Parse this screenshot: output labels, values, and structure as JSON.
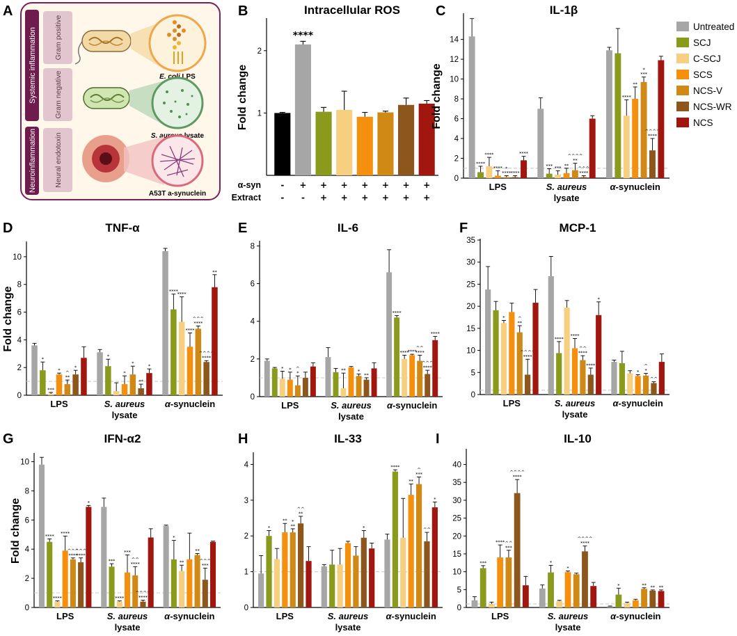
{
  "legend": {
    "items": [
      "Untreated",
      "SCJ",
      "C-SCJ",
      "SCS",
      "NCS-V",
      "NCS-WR",
      "NCS"
    ],
    "colors": [
      "#a6a6a6",
      "#8a9a1c",
      "#f7cf80",
      "#f5900e",
      "#cf8914",
      "#8c561c",
      "#a21610"
    ]
  },
  "panel_a": {
    "label": "A",
    "side_labels": [
      "Systemic inflammation",
      "Neuroinflammation"
    ],
    "box_labels": [
      "Gram positive",
      "Gram negative",
      "Neural endotoxin"
    ],
    "captions": [
      {
        "italic": "E. coli",
        "plain": " LPS"
      },
      {
        "italic": "S. aureus",
        "plain": " lysate"
      },
      {
        "italic": "",
        "plain": "A53T a-synuclein"
      }
    ]
  },
  "panel_b": {
    "label": "B",
    "condition_labels": [
      "α-syn",
      "Extract"
    ],
    "condition_values": [
      [
        "-",
        "+",
        "+",
        "+",
        "+",
        "+",
        "+",
        "+"
      ],
      [
        "-",
        "-",
        "+",
        "+",
        "+",
        "+",
        "+",
        "+"
      ]
    ]
  },
  "chart_data": [
    {
      "id": "B",
      "type": "bar",
      "title": "Intracellular ROS",
      "ylabel": "Fold change",
      "ylim": [
        0,
        2.5
      ],
      "yticks": [
        1,
        2
      ],
      "colors": [
        "#000000",
        "#a6a6a6",
        "#8a9a1c",
        "#f7cf80",
        "#f5900e",
        "#cf8914",
        "#8c561c",
        "#a21610"
      ],
      "values": [
        1.0,
        2.1,
        1.02,
        1.05,
        0.94,
        1.01,
        1.13,
        1.15
      ],
      "errors": [
        0.01,
        0.05,
        0.07,
        0.3,
        0.07,
        0.02,
        0.11,
        0.05
      ],
      "annotations": [
        "",
        "****",
        "",
        "",
        "",
        "",
        "",
        ""
      ]
    },
    {
      "id": "C",
      "type": "bar",
      "title": "IL-1β",
      "ylabel": "Fold change",
      "ylim": [
        0,
        16.5
      ],
      "yticks": [
        0,
        2,
        4,
        6,
        8,
        10,
        12,
        14
      ],
      "groups": [
        "LPS",
        "S. aureus lysate",
        "α-synuclein"
      ],
      "values": [
        [
          14.3,
          0.6,
          1.2,
          0.25,
          0.1,
          0.1,
          1.8
        ],
        [
          7.0,
          0.45,
          0.35,
          0.5,
          0.8,
          0.1,
          6.0
        ],
        [
          12.9,
          12.6,
          6.3,
          8.0,
          9.7,
          2.8,
          11.9
        ]
      ],
      "errors": [
        [
          1.8,
          0.6,
          0.9,
          0.5,
          0.15,
          0.15,
          0.4
        ],
        [
          1.1,
          0.5,
          0.4,
          0.5,
          0.7,
          0.15,
          0.3
        ],
        [
          0.3,
          2.5,
          1.6,
          1.2,
          0.5,
          1.2,
          0.4
        ]
      ],
      "annotations": [
        [
          "",
          "****",
          "****",
          "****",
          "*\n****",
          "****",
          "****"
        ],
        [
          "",
          "***",
          "***",
          "**",
          "^^^^\n**",
          "^^^\n****",
          ""
        ],
        [
          "",
          "",
          "****",
          "**",
          "*\n***",
          "^^^^\n****",
          ""
        ]
      ]
    },
    {
      "id": "D",
      "type": "bar",
      "title": "TNF-α",
      "ylabel": "Fold change",
      "ylim": [
        0,
        11
      ],
      "yticks": [
        0,
        2,
        4,
        6,
        8,
        10
      ],
      "groups": [
        "LPS",
        "S. aureus lysate",
        "α-synuclein"
      ],
      "values": [
        [
          3.6,
          1.8,
          0.1,
          1.5,
          0.8,
          1.5,
          2.7
        ],
        [
          3.1,
          2.1,
          0.3,
          0.8,
          1.5,
          0.5,
          1.6
        ],
        [
          10.4,
          6.2,
          5.3,
          3.5,
          4.8,
          2.4,
          7.8
        ]
      ],
      "errors": [
        [
          0.15,
          0.6,
          0.1,
          0.1,
          0.3,
          0.3,
          0.8
        ],
        [
          0.2,
          0.5,
          0.6,
          0.6,
          0.6,
          0.3,
          0.3
        ],
        [
          0.2,
          1.1,
          1.8,
          1.0,
          0.2,
          0.1,
          0.9
        ]
      ],
      "annotations": [
        [
          "",
          "*",
          "***",
          "*",
          "^\n**",
          "*",
          ""
        ],
        [
          "",
          "*",
          "",
          "*",
          "*",
          "**",
          "*"
        ],
        [
          "",
          "****",
          "****",
          "****",
          "^^^\n****",
          "^^^^\n****",
          "**"
        ]
      ]
    },
    {
      "id": "E",
      "type": "bar",
      "title": "IL-6",
      "ylabel": "",
      "ylim": [
        0,
        8.2
      ],
      "yticks": [
        0,
        2,
        4,
        6,
        8
      ],
      "groups": [
        "LPS",
        "S. aureus lysate",
        "α-synuclein"
      ],
      "values": [
        [
          1.9,
          1.5,
          0.95,
          0.9,
          0.6,
          1.0,
          1.6
        ],
        [
          2.1,
          1.3,
          0.45,
          1.55,
          1.1,
          0.9,
          1.5
        ],
        [
          6.6,
          4.2,
          2.0,
          2.2,
          1.9,
          1.2,
          3.0
        ]
      ],
      "errors": [
        [
          0.1,
          0.05,
          0.4,
          0.4,
          0.5,
          0.3,
          0.2
        ],
        [
          0.5,
          0.2,
          0.8,
          0.05,
          0.1,
          0.1,
          0.3
        ],
        [
          1.2,
          0.1,
          0.2,
          0.05,
          0.3,
          0.2,
          0.2
        ]
      ],
      "annotations": [
        [
          "",
          "",
          "*",
          "*",
          "^\n*",
          "",
          ""
        ],
        [
          "",
          "",
          "**",
          "",
          "*",
          "**",
          ""
        ],
        [
          "",
          "****",
          "****",
          "****",
          "^^\n****",
          "^^^\n****",
          "****"
        ]
      ]
    },
    {
      "id": "F",
      "type": "bar",
      "title": "MCP-1",
      "ylabel": "",
      "ylim": [
        0,
        35
      ],
      "yticks": [
        0,
        5,
        10,
        15,
        20,
        25,
        30,
        35
      ],
      "groups": [
        "LPS",
        "S. aureus lysate",
        "α-synuclein"
      ],
      "values": [
        [
          23.8,
          19.1,
          16.2,
          18.7,
          14.1,
          4.5,
          20.8
        ],
        [
          26.8,
          9.4,
          19.7,
          10.5,
          7.8,
          4.5,
          18.0
        ],
        [
          7.4,
          7.1,
          4.8,
          4.2,
          4.3,
          2.6,
          7.4
        ]
      ],
      "errors": [
        [
          5.2,
          2.0,
          0.6,
          2.0,
          1.5,
          3.5,
          3.0
        ],
        [
          4.5,
          2.6,
          1.6,
          2.2,
          1.0,
          1.5,
          3.0
        ],
        [
          0.4,
          2.7,
          0.6,
          0.3,
          0.5,
          0.3,
          1.8
        ]
      ],
      "annotations": [
        [
          "",
          "",
          "*",
          "",
          "^\n**",
          "^^^^\n****",
          ""
        ],
        [
          "",
          "****",
          "",
          "****",
          "^^\n****",
          "****",
          "*"
        ],
        [
          "",
          "",
          "",
          "*",
          "^\n*",
          "^^",
          ""
        ]
      ]
    },
    {
      "id": "G",
      "type": "bar",
      "title": "IFN-α2",
      "ylabel": "Fold change",
      "ylim": [
        0,
        10.5
      ],
      "yticks": [
        0,
        2,
        4,
        6,
        8,
        10
      ],
      "groups": [
        "LPS",
        "S. aureus lysate",
        "α-synuclein"
      ],
      "values": [
        [
          9.8,
          4.5,
          0.4,
          3.9,
          3.3,
          3.1,
          6.9
        ],
        [
          6.9,
          2.8,
          0.4,
          2.4,
          2.2,
          0.4,
          4.8
        ],
        [
          5.6,
          3.3,
          2.5,
          3.3,
          3.6,
          1.9,
          4.5
        ]
      ],
      "errors": [
        [
          0.5,
          0.2,
          0.05,
          1.0,
          0.1,
          0.3,
          0.1
        ],
        [
          0.6,
          0.2,
          0.05,
          1.2,
          0.6,
          0.1,
          0.6
        ],
        [
          0.05,
          1.3,
          0.4,
          1.8,
          0.1,
          0.8,
          0.05
        ]
      ],
      "annotations": [
        [
          "",
          "****",
          "****",
          "****",
          "^^^\n****",
          "^^^\n****",
          "*"
        ],
        [
          "",
          "***",
          "****",
          "***",
          "^^\n****",
          "^^^^\n****",
          ""
        ],
        [
          "",
          "*",
          "**",
          "",
          "**",
          "^^^\n***",
          ""
        ]
      ]
    },
    {
      "id": "H",
      "type": "bar",
      "title": "IL-33",
      "ylabel": "",
      "ylim": [
        0,
        4.3
      ],
      "yticks": [
        0,
        1,
        2,
        3,
        4
      ],
      "groups": [
        "LPS",
        "S. aureus lysate",
        "α-synuclein"
      ],
      "values": [
        [
          0.95,
          2.0,
          1.35,
          2.1,
          2.1,
          2.35,
          1.3
        ],
        [
          1.15,
          1.2,
          1.2,
          1.8,
          1.45,
          1.95,
          1.65
        ],
        [
          1.9,
          3.8,
          1.95,
          3.15,
          3.45,
          1.85,
          2.8
        ]
      ],
      "errors": [
        [
          0.5,
          0.15,
          0.3,
          0.25,
          0.1,
          0.2,
          0.4
        ],
        [
          0.05,
          0.4,
          0.45,
          0.05,
          0.25,
          0.2,
          0.15
        ],
        [
          0.15,
          0.05,
          1.1,
          0.3,
          0.2,
          0.25,
          0.15
        ]
      ],
      "annotations": [
        [
          "",
          "*",
          "",
          "**",
          "*\n**",
          "^^\n**",
          ""
        ],
        [
          "",
          "",
          "",
          "",
          "",
          "*",
          ""
        ],
        [
          "",
          "****",
          "",
          "**",
          "^\n***",
          "^^",
          "*"
        ]
      ]
    },
    {
      "id": "I",
      "type": "bar",
      "title": "IL-10",
      "ylabel": "",
      "ylim": [
        0,
        44
      ],
      "yticks": [
        0,
        5,
        10,
        15,
        20,
        25,
        30,
        35,
        40
      ],
      "groups": [
        "LPS",
        "S. aureus lysate",
        "α-synuclein"
      ],
      "values": [
        [
          2.0,
          11.0,
          1.0,
          14.0,
          14.0,
          32.0,
          6.2
        ],
        [
          5.3,
          9.8,
          1.8,
          9.9,
          9.3,
          15.7,
          6.0
        ],
        [
          0.3,
          3.6,
          1.2,
          2.0,
          5.2,
          4.7,
          4.6
        ]
      ],
      "errors": [
        [
          1.0,
          0.7,
          0.5,
          3.5,
          2.0,
          3.8,
          2.5
        ],
        [
          1.0,
          2.0,
          0.2,
          0.3,
          0.3,
          1.5,
          1.0
        ],
        [
          0.1,
          1.8,
          0.3,
          0.3,
          0.3,
          0.2,
          0.3
        ]
      ],
      "annotations": [
        [
          "",
          "***",
          "",
          "****",
          "^^\n***",
          "^^^^\n****",
          ""
        ],
        [
          "",
          "*",
          "",
          "*",
          "",
          "^^^^\n****",
          ""
        ],
        [
          "",
          "*",
          "",
          "",
          "**",
          "**",
          "**"
        ]
      ]
    }
  ]
}
